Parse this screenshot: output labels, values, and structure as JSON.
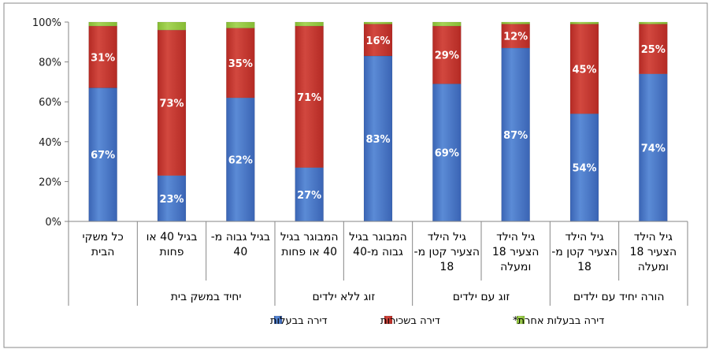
{
  "chart_data": {
    "type": "bar",
    "stacked": true,
    "percent_axis": true,
    "ylim": [
      0,
      100
    ],
    "yticks": [
      "0%",
      "20%",
      "40%",
      "60%",
      "80%",
      "100%"
    ],
    "grid": false,
    "legend_position": "bottom",
    "categories": [
      {
        "lines": [
          "כל משקי",
          "הבית"
        ],
        "group": ""
      },
      {
        "lines": [
          "בגיל 40 או",
          "פחות"
        ],
        "group": "יחיד במשק בית"
      },
      {
        "lines": [
          "בגיל גבוה מ-",
          "40"
        ],
        "group": "יחיד במשק בית"
      },
      {
        "lines": [
          "המבוגר בגיל",
          "40 או פחות"
        ],
        "group": "זוג ללא ילדים"
      },
      {
        "lines": [
          "המבוגר בגיל",
          "גבוה מ-40"
        ],
        "group": "זוג ללא ילדים"
      },
      {
        "lines": [
          "גיל הילד",
          "הצעיר קטן מ-",
          "18"
        ],
        "group": "זוג עם ילדים"
      },
      {
        "lines": [
          "גיל הילד",
          "הצעיר 18",
          "ומעלה"
        ],
        "group": "זוג עם ילדים"
      },
      {
        "lines": [
          "גיל הילד",
          "הצעיר קטן מ-",
          "18"
        ],
        "group": "הורה יחיד עם ילדים"
      },
      {
        "lines": [
          "גיל הילד",
          "הצעיר 18",
          "ומעלה"
        ],
        "group": "הורה יחיד עם ילדים"
      }
    ],
    "groups": [
      "",
      "יחיד במשק בית",
      "זוג ללא ילדים",
      "זוג עם ילדים",
      "הורה יחיד עם ילדים"
    ],
    "series": [
      {
        "name": "דירה בבעלות",
        "color": "#4472c4",
        "values": [
          67,
          23,
          62,
          27,
          83,
          69,
          87,
          54,
          74
        ],
        "labels": [
          "67%",
          "23%",
          "62%",
          "27%",
          "83%",
          "69%",
          "87%",
          "54%",
          "74%"
        ]
      },
      {
        "name": "דירה בשכירות",
        "color": "#c0392b",
        "values": [
          31,
          73,
          35,
          71,
          16,
          29,
          12,
          45,
          25
        ],
        "labels": [
          "31%",
          "73%",
          "35%",
          "71%",
          "16%",
          "29%",
          "12%",
          "45%",
          "25%"
        ]
      },
      {
        "name": "דירה בבעלות אחרת*",
        "color": "#92c83e",
        "values": [
          2,
          4,
          3,
          2,
          1,
          2,
          1,
          1,
          1
        ],
        "labels": []
      }
    ]
  }
}
